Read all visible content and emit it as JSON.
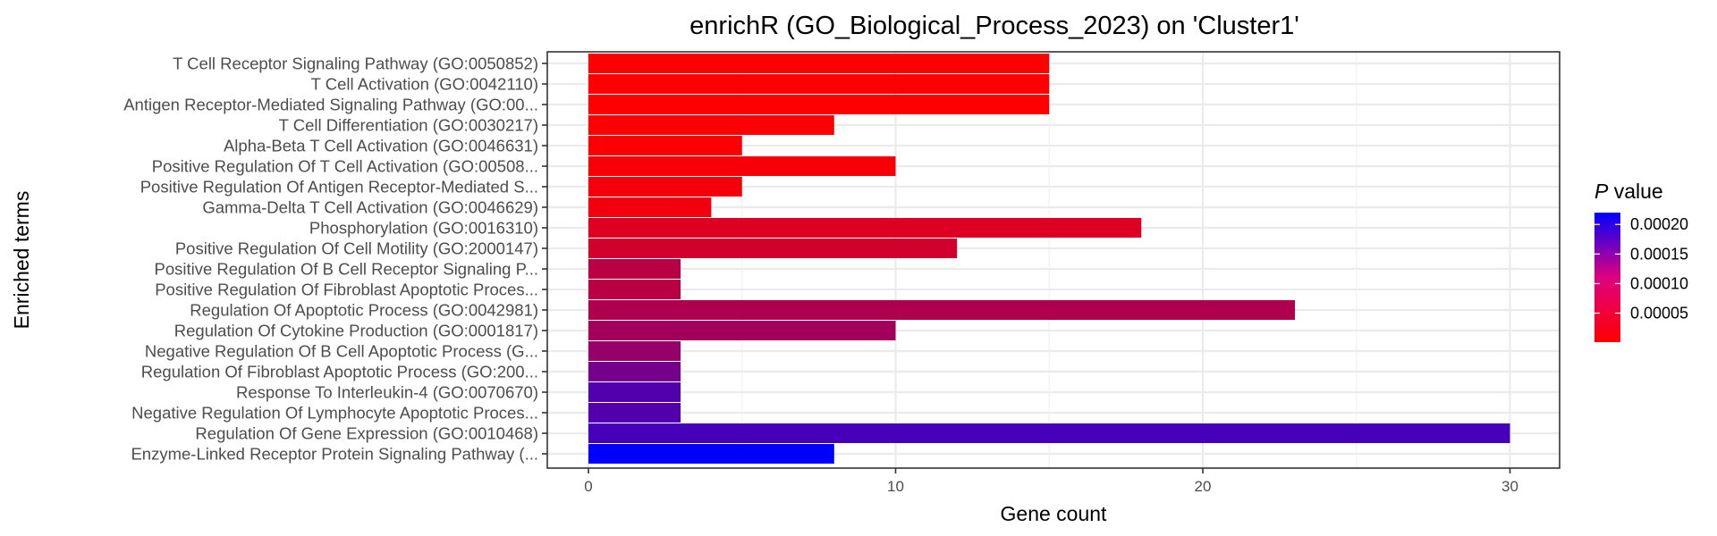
{
  "chart_data": {
    "type": "bar",
    "orientation": "horizontal",
    "title": "enrichR (GO_Biological_Process_2023) on 'Cluster1'",
    "xlabel": "Gene count",
    "ylabel": "Enriched terms",
    "xlim": [
      0,
      31
    ],
    "x_ticks": [
      0,
      10,
      20,
      30
    ],
    "grid": true,
    "categories": [
      "T Cell Receptor Signaling Pathway (GO:0050852)",
      "T Cell Activation (GO:0042110)",
      "Antigen Receptor-Mediated Signaling Pathway (GO:00...",
      "T Cell Differentiation (GO:0030217)",
      "Alpha-Beta T Cell Activation (GO:0046631)",
      "Positive Regulation Of T Cell Activation (GO:00508...",
      "Positive Regulation Of Antigen Receptor-Mediated S...",
      "Gamma-Delta T Cell Activation (GO:0046629)",
      "Phosphorylation (GO:0016310)",
      "Positive Regulation Of Cell Motility (GO:2000147)",
      "Positive Regulation Of B Cell Receptor Signaling P...",
      "Positive Regulation Of Fibroblast Apoptotic Proces...",
      "Regulation Of Apoptotic Process (GO:0042981)",
      "Regulation Of Cytokine Production (GO:0001817)",
      "Negative Regulation Of B Cell Apoptotic Process (G...",
      "Regulation Of Fibroblast Apoptotic Process (GO:200...",
      "Response To Interleukin-4 (GO:0070670)",
      "Negative Regulation Of Lymphocyte Apoptotic Proces...",
      "Regulation Of Gene Expression (GO:0010468)",
      "Enzyme-Linked Receptor Protein Signaling Pathway (..."
    ],
    "values": [
      15,
      15,
      15,
      8,
      5,
      10,
      5,
      4,
      18,
      12,
      3,
      3,
      23,
      10,
      3,
      3,
      3,
      3,
      30,
      8
    ],
    "p_values": [
      1e-06,
      2e-06,
      3e-06,
      4e-06,
      5e-06,
      8e-06,
      1e-05,
      1.2e-05,
      3e-05,
      4e-05,
      6e-05,
      6e-05,
      7e-05,
      8e-05,
      9e-05,
      0.00012,
      0.00015,
      0.00015,
      0.00016,
      0.00022
    ],
    "color_scale": {
      "title_italic": "P",
      "title_rest": " value",
      "min": 1e-06,
      "max": 0.00022,
      "low_color": "#ff0000",
      "high_color": "#0000ff",
      "ticks": [
        5e-05,
        0.0001,
        0.00015,
        0.0002
      ],
      "tick_labels": [
        "0.00005",
        "0.00010",
        "0.00015",
        "0.00020"
      ],
      "placement": "right"
    }
  }
}
